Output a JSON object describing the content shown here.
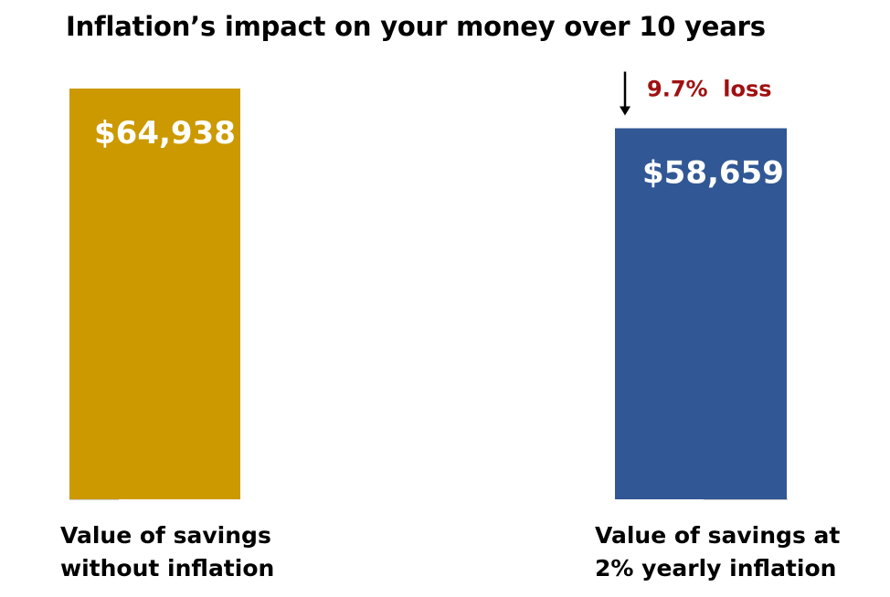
{
  "chart_data": {
    "type": "bar",
    "title": "Inflation’s impact on your money over 10 years",
    "categories": [
      [
        "Value of savings",
        "without inflation"
      ],
      [
        "Value of savings at",
        "2% yearly inflation"
      ]
    ],
    "values": [
      64938,
      58659
    ],
    "value_labels": [
      "$64,938",
      "$58,659"
    ],
    "bar_colors": [
      "#CC9900",
      "#315795"
    ],
    "annotation": {
      "text": "9.7%  loss",
      "color": "#A01010",
      "attached_to": 1
    },
    "ylim": [
      0,
      64938
    ],
    "grid": false,
    "legend": "none"
  }
}
